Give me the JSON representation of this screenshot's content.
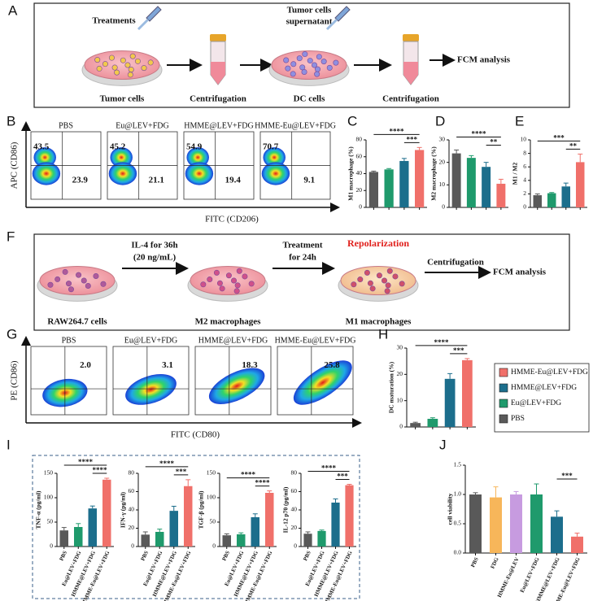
{
  "panel_letters": [
    "A",
    "B",
    "C",
    "D",
    "E",
    "F",
    "G",
    "H",
    "I",
    "J"
  ],
  "scheme_a": {
    "treatments": "Treatments",
    "supernatant": [
      "Tumor cells",
      "supernatant"
    ],
    "tumor_cells": "Tumor cells",
    "centrifugation_1": "Centrifugation",
    "dc_cells": "DC cells",
    "centrifugation_2": "Centrifugation",
    "fcm": "FCM analysis"
  },
  "scheme_f": {
    "il4": [
      "IL-4 for 36h",
      "(20 ng/mL)"
    ],
    "treatment": [
      "Treatment",
      "for 24h"
    ],
    "repolarization": "Repolarization",
    "centrifugation": "Centrifugation",
    "fcm": "FCM analysis",
    "raw": "RAW264.7 cells",
    "m2": "M2 macrophages",
    "m1": "M1 macrophages"
  },
  "flow": [
    {
      "y_label": "APC (CD86)",
      "x_label": "FITC (CD206)",
      "plots": [
        {
          "title": "PBS",
          "upper_left": "43.5",
          "lower_right": "23.9"
        },
        {
          "title": "Eu@LEV+FDG",
          "upper_left": "45.2",
          "lower_right": "21.1"
        },
        {
          "title": "HMME@LEV+FDG",
          "upper_left": "54.9",
          "lower_right": "19.4"
        },
        {
          "title": "HMME-Eu@LEV+FDG",
          "upper_left": "70.7",
          "lower_right": "9.1"
        }
      ]
    },
    {
      "y_label": "PE (CD86)",
      "x_label": "FITC (CD80)",
      "plots": [
        {
          "title": "PBS",
          "upper_right": "2.0"
        },
        {
          "title": "Eu@LEV+FDG",
          "upper_right": "3.1"
        },
        {
          "title": "HMME@LEV+FDG",
          "upper_right": "18.3"
        },
        {
          "title": "HMME-Eu@LEV+FDG",
          "upper_right": "25.8"
        }
      ]
    }
  ],
  "legend": {
    "names": [
      "HMME-Eu@LEV+FDG",
      "HMME@LEV+FDG",
      "Eu@LEV+FDG",
      "PBS"
    ],
    "colors": [
      "#f0706a",
      "#1c6e8c",
      "#1f9a6c",
      "#595959"
    ]
  },
  "chart_data": [
    {
      "type": "bar",
      "y_label": "M1 macrophage (%)",
      "values": [
        42,
        45,
        55,
        68
      ],
      "errors": [
        1,
        1,
        3,
        3
      ],
      "colors": [
        "#595959",
        "#1f9a6c",
        "#1c6e8c",
        "#f0706a"
      ],
      "ylim": [
        0,
        80
      ],
      "yticks": [
        0,
        20,
        40,
        60,
        80
      ],
      "annotations": [
        "****",
        "***"
      ]
    },
    {
      "type": "bar",
      "y_label": "M2 macrophage (%)",
      "values": [
        24,
        22,
        18,
        10.5
      ],
      "errors": [
        1.5,
        1,
        2,
        2
      ],
      "colors": [
        "#595959",
        "#1f9a6c",
        "#1c6e8c",
        "#f0706a"
      ],
      "ylim": [
        0,
        30
      ],
      "yticks": [
        0,
        10,
        20,
        30
      ],
      "annotations": [
        "****",
        "**"
      ]
    },
    {
      "type": "bar",
      "y_label": "M1 / M2",
      "values": [
        1.8,
        2.1,
        3.1,
        6.7
      ],
      "errors": [
        0.2,
        0.1,
        0.5,
        1.2
      ],
      "colors": [
        "#595959",
        "#1f9a6c",
        "#1c6e8c",
        "#f0706a"
      ],
      "ylim": [
        0,
        10
      ],
      "yticks": [
        0,
        2,
        4,
        6,
        8,
        10
      ],
      "annotations": [
        "***",
        "**"
      ]
    },
    {
      "type": "bar",
      "y_label": "DC maturation (%)",
      "values": [
        1.5,
        3.1,
        18.3,
        25.4
      ],
      "errors": [
        0.3,
        0.4,
        2,
        0.6
      ],
      "colors": [
        "#595959",
        "#1f9a6c",
        "#1c6e8c",
        "#f0706a"
      ],
      "ylim": [
        0,
        30
      ],
      "yticks": [
        0,
        10,
        20,
        30
      ],
      "annotations": [
        "****",
        "***"
      ]
    },
    {
      "type": "bar",
      "y_label": "TNF-α (pg/ml)",
      "categories": [
        "PBS",
        "Eu@LEV+FDG",
        "HMME@LEV+FDG",
        "HMME-Eu@LEV+FDG"
      ],
      "values": [
        33,
        40,
        78,
        137
      ],
      "errors": [
        6,
        7,
        5,
        3
      ],
      "colors": [
        "#595959",
        "#1f9a6c",
        "#1c6e8c",
        "#f0706a"
      ],
      "ylim": [
        0,
        150
      ],
      "yticks": [
        0,
        50,
        100,
        150
      ],
      "annotations": [
        "****",
        "****"
      ]
    },
    {
      "type": "bar",
      "y_label": "IFN-γ (pg/ml)",
      "categories": [
        "PBS",
        "Eu@LEV+FDG",
        "HMME@LEV+FDG",
        "HMME-Eu@LEV+FDG"
      ],
      "values": [
        13,
        16,
        39,
        66
      ],
      "errors": [
        3,
        3,
        5,
        7
      ],
      "colors": [
        "#595959",
        "#1f9a6c",
        "#1c6e8c",
        "#f0706a"
      ],
      "ylim": [
        0,
        80
      ],
      "yticks": [
        0,
        20,
        40,
        60,
        80
      ],
      "annotations": [
        "****",
        "***"
      ]
    },
    {
      "type": "bar",
      "y_label": "TGF-β (pg/ml)",
      "categories": [
        "PBS",
        "Eu@LEV+FDG",
        "HMME@LEV+FDG",
        "HMME-Eu@LEV+FDG"
      ],
      "values": [
        23,
        25,
        60,
        110
      ],
      "errors": [
        3,
        3,
        7,
        4
      ],
      "colors": [
        "#595959",
        "#1f9a6c",
        "#1c6e8c",
        "#f0706a"
      ],
      "ylim": [
        0,
        150
      ],
      "yticks": [
        0,
        50,
        100,
        150
      ],
      "annotations": [
        "****",
        "****"
      ]
    },
    {
      "type": "bar",
      "y_label": "IL-12 p70 (pg/ml)",
      "categories": [
        "PBS",
        "Eu@LEV+FDG",
        "HMME@LEV+FDG",
        "HMME-Eu@LEV+FDG"
      ],
      "values": [
        14,
        17,
        48,
        67
      ],
      "errors": [
        2,
        1,
        4,
        1
      ],
      "colors": [
        "#595959",
        "#1f9a6c",
        "#1c6e8c",
        "#f0706a"
      ],
      "ylim": [
        0,
        80
      ],
      "yticks": [
        0,
        20,
        40,
        60,
        80
      ],
      "annotations": [
        "****",
        "***"
      ]
    },
    {
      "type": "bar",
      "y_label": "cell viability",
      "categories": [
        "PBS",
        "FDG",
        "HMME-Eu@LEV",
        "Eu@LEV+FDG",
        "HMME@LEV+FDG",
        "HMME-Eu@LEV+FDG"
      ],
      "values": [
        1.0,
        0.95,
        1.0,
        1.0,
        0.62,
        0.28
      ],
      "errors": [
        0.03,
        0.18,
        0.05,
        0.18,
        0.1,
        0.06
      ],
      "colors": [
        "#595959",
        "#f7b65a",
        "#c79be0",
        "#1f9a6c",
        "#1c6e8c",
        "#f0706a"
      ],
      "ylim": [
        0,
        1.5
      ],
      "yticks": [
        {
          "value": 0,
          "label": "0.0"
        },
        {
          "value": 0.5,
          "label": "0.5"
        },
        {
          "value": 1,
          "label": "1.0"
        },
        {
          "value": 1.5,
          "label": "1.5"
        }
      ],
      "annotations": [
        "***"
      ]
    }
  ]
}
